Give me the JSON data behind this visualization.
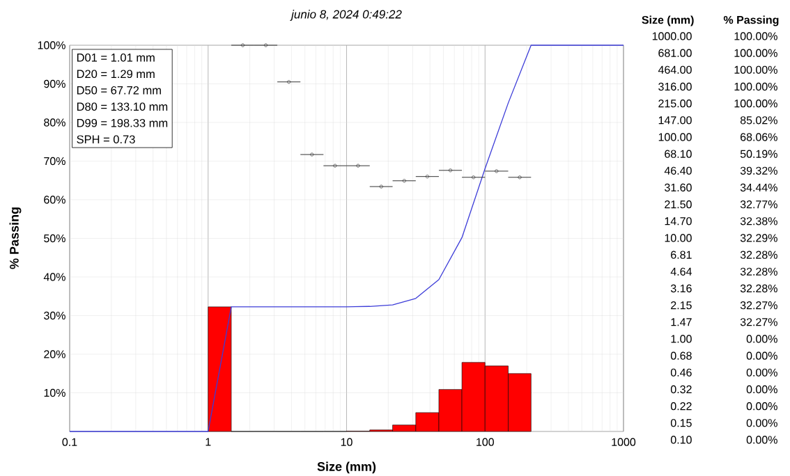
{
  "chart_data": [
    {
      "type": "histogram",
      "title": "junio 8, 2024 0:49:22",
      "xlabel": "Size (mm)",
      "ylabel": "% Passing",
      "log": "x",
      "grid": true,
      "xlim": [
        0.1,
        1000
      ],
      "ylim": [
        0,
        100
      ],
      "xticks": [
        0.1,
        1,
        10,
        100,
        1000
      ],
      "yticks": [
        {
          "value": 10,
          "label": "10%"
        },
        {
          "value": 20,
          "label": "20%"
        },
        {
          "value": 30,
          "label": "30%"
        },
        {
          "value": 40,
          "label": "40%"
        },
        {
          "value": 50,
          "label": "50%"
        },
        {
          "value": 60,
          "label": "60%"
        },
        {
          "value": 70,
          "label": "70%"
        },
        {
          "value": 80,
          "label": "80%"
        },
        {
          "value": 90,
          "label": "90%"
        },
        {
          "value": 100,
          "label": "100%"
        }
      ],
      "annotations": [
        "D01 = 1.01 mm",
        "D20 = 1.29 mm",
        "D50 = 67.72 mm",
        "D80 = 133.10 mm",
        "D99 = 198.33 mm",
        "SPH = 0.73"
      ],
      "series": [
        {
          "type": "histogram",
          "color": "#ff0000",
          "bins": [
            1,
            1.47,
            2.15,
            3.16,
            4.64,
            6.81,
            10,
            14.7,
            21.5,
            31.6,
            46.4,
            68.1,
            100,
            147,
            215
          ],
          "values": [
            32.27,
            0,
            0.01,
            0,
            0,
            0.01,
            0.09,
            0.39,
            1.67,
            4.88,
            10.87,
            17.87,
            16.96,
            14.98
          ]
        },
        {
          "type": "line",
          "color": "#3c3cd8",
          "x": [
            1000,
            681,
            464,
            316,
            215,
            147,
            100,
            68.1,
            46.4,
            31.6,
            21.5,
            14.7,
            10,
            6.81,
            4.64,
            3.16,
            2.15,
            1.47,
            1,
            0.68,
            0.46,
            0.32,
            0.22,
            0.15,
            0.1
          ],
          "values": [
            100,
            100,
            100,
            100,
            100,
            85.02,
            68.06,
            50.19,
            39.32,
            34.44,
            32.77,
            32.38,
            32.29,
            32.28,
            32.28,
            32.28,
            32.27,
            32.27,
            0,
            0,
            0,
            0,
            0,
            0,
            0
          ]
        },
        {
          "type": "scatter",
          "color": "#333333",
          "x": [
            1.78,
            2.61,
            3.83,
            5.62,
            8.25,
            12.1,
            17.8,
            26.1,
            38.3,
            56.2,
            82.5,
            121,
            178
          ],
          "values": [
            100,
            100,
            90.5,
            71.7,
            68.8,
            68.8,
            63.4,
            64.9,
            66.0,
            67.6,
            65.8,
            67.4,
            65.8
          ],
          "xerrors": [
            [
              1.47,
              2.15
            ],
            [
              2.15,
              3.16
            ],
            [
              3.16,
              4.64
            ],
            [
              4.64,
              6.81
            ],
            [
              6.81,
              10
            ],
            [
              10,
              14.7
            ],
            [
              14.7,
              21.5
            ],
            [
              21.5,
              31.6
            ],
            [
              31.6,
              46.4
            ],
            [
              46.4,
              68.1
            ],
            [
              68.1,
              100
            ],
            [
              100,
              147
            ],
            [
              147,
              215
            ]
          ]
        }
      ]
    },
    {
      "type": "other",
      "annotations": [
        "Size (mm)",
        "% Passing"
      ],
      "categories": [
        "1000.00",
        "681.00",
        "464.00",
        "316.00",
        "215.00",
        "147.00",
        "100.00",
        "68.10",
        "46.40",
        "31.60",
        "21.50",
        "14.70",
        "10.00",
        "6.81",
        "4.64",
        "3.16",
        "2.15",
        "1.47",
        "1.00",
        "0.68",
        "0.46",
        "0.32",
        "0.22",
        "0.15",
        "0.10"
      ],
      "value_labels": [
        "100.00%",
        "100.00%",
        "100.00%",
        "100.00%",
        "100.00%",
        "85.02%",
        "68.06%",
        "50.19%",
        "39.32%",
        "34.44%",
        "32.77%",
        "32.38%",
        "32.29%",
        "32.28%",
        "32.28%",
        "32.28%",
        "32.27%",
        "32.27%",
        "0.00%",
        "0.00%",
        "0.00%",
        "0.00%",
        "0.00%",
        "0.00%",
        "0.00%"
      ]
    }
  ]
}
